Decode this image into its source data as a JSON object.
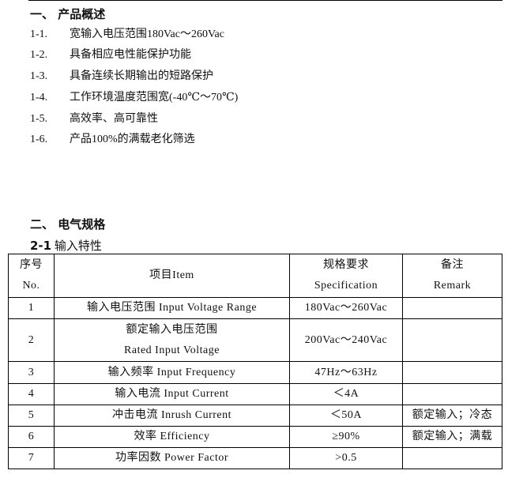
{
  "section1": {
    "title": "一、  产品概述",
    "items": [
      {
        "num": "1-1.",
        "text": "宽输入电压范围180Vac～260Vac"
      },
      {
        "num": "1-2.",
        "text": "具备相应电性能保护功能"
      },
      {
        "num": "1-3.",
        "text": "具备连续长期输出的短路保护"
      },
      {
        "num": "1-4.",
        "text": "工作环境温度范围宽(-40℃～70℃)"
      },
      {
        "num": "1-5.",
        "text": "高效率、高可靠性"
      },
      {
        "num": "1-6.",
        "text": "产品100%的满载老化筛选"
      }
    ]
  },
  "section2": {
    "title": "二、  电气规格",
    "sub_num": "2-1",
    "sub_title": "输入特性"
  },
  "table": {
    "headers": {
      "no_cn": "序号",
      "no_en": "No.",
      "item": "项目Item",
      "spec_cn": "规格要求",
      "spec_en": "Specification",
      "remark_cn": "备注",
      "remark_en": "Remark"
    },
    "rows": [
      {
        "no": "1",
        "item": "输入电压范围 Input Voltage Range",
        "spec": "180Vac～260Vac",
        "remark": ""
      },
      {
        "no": "2",
        "item": "额定输入电压范围",
        "item2": "Rated Input Voltage",
        "spec": "200Vac～240Vac",
        "remark": ""
      },
      {
        "no": "3",
        "item": "输入频率 Input Frequency",
        "spec": "47Hz～63Hz",
        "remark": ""
      },
      {
        "no": "4",
        "item": "输入电流 Input Current",
        "spec": "＜4A",
        "remark": ""
      },
      {
        "no": "5",
        "item": "冲击电流 Inrush Current",
        "spec": "＜50A",
        "remark": "额定输入；冷态"
      },
      {
        "no": "6",
        "item": "效率 Efficiency",
        "spec": "≥90%",
        "remark": "额定输入；满载"
      },
      {
        "no": "7",
        "item": "功率因数 Power Factor",
        "spec": ">0.5",
        "remark": ""
      }
    ]
  }
}
